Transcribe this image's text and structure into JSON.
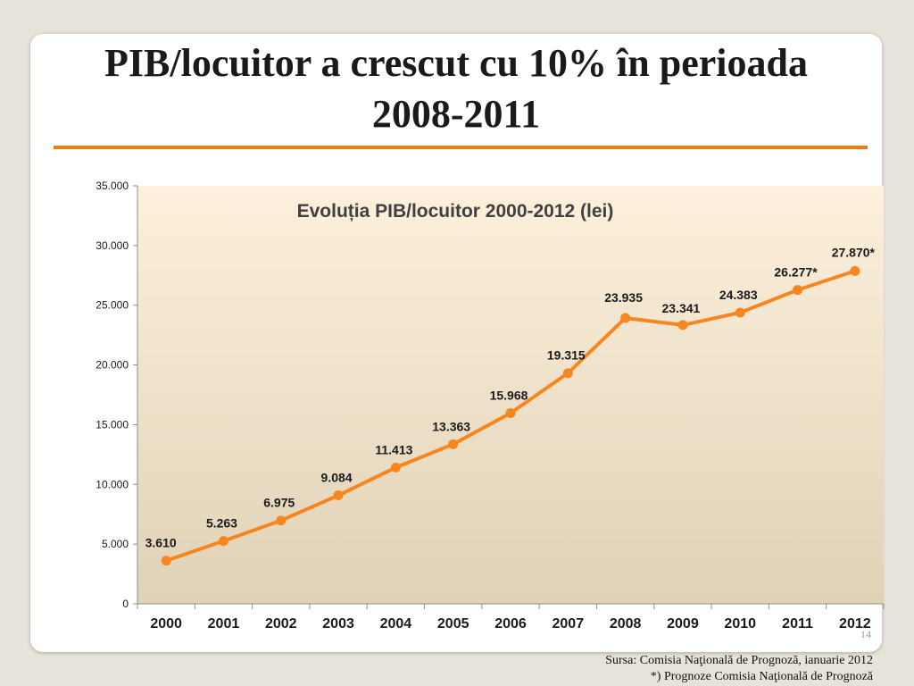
{
  "slide": {
    "title_line1": "PIB/locuitor a crescut cu 10% în perioada",
    "title_line2": "2008-2011",
    "page_number": "14",
    "source_line1": "Sursa: Comisia Naţională de Prognoză,  ianuarie 2012",
    "source_line2": "*) Prognoze Comisia Naţională de Prognoză"
  },
  "colors": {
    "accent": "#f07d14",
    "series": "#f7861e",
    "plot_top": "#fdf0dc",
    "plot_bottom": "#e0d2b6"
  },
  "chart_data": {
    "type": "line",
    "title": "Evoluția PIB/locuitor 2000-2012 (lei)",
    "categories": [
      "2000",
      "2001",
      "2002",
      "2003",
      "2004",
      "2005",
      "2006",
      "2007",
      "2008",
      "2009",
      "2010",
      "2011",
      "2012"
    ],
    "values": [
      3610,
      5263,
      6975,
      9084,
      11413,
      13363,
      15968,
      19315,
      23935,
      23341,
      24383,
      26277,
      27870
    ],
    "data_labels": [
      "3.610",
      "5.263",
      "6.975",
      "9.084",
      "11.413",
      "13.363",
      "15.968",
      "19.315",
      "23.935",
      "23.341",
      "24.383",
      "26.277*",
      "27.870*"
    ],
    "ylim": [
      0,
      35000
    ],
    "yticks": [
      0,
      5000,
      10000,
      15000,
      20000,
      25000,
      30000,
      35000
    ],
    "ytick_labels": [
      "0",
      "5.000",
      "10.000",
      "15.000",
      "20.000",
      "25.000",
      "30.000",
      "35.000"
    ],
    "xlabel": "",
    "ylabel": "",
    "grid": false,
    "legend": "none"
  }
}
